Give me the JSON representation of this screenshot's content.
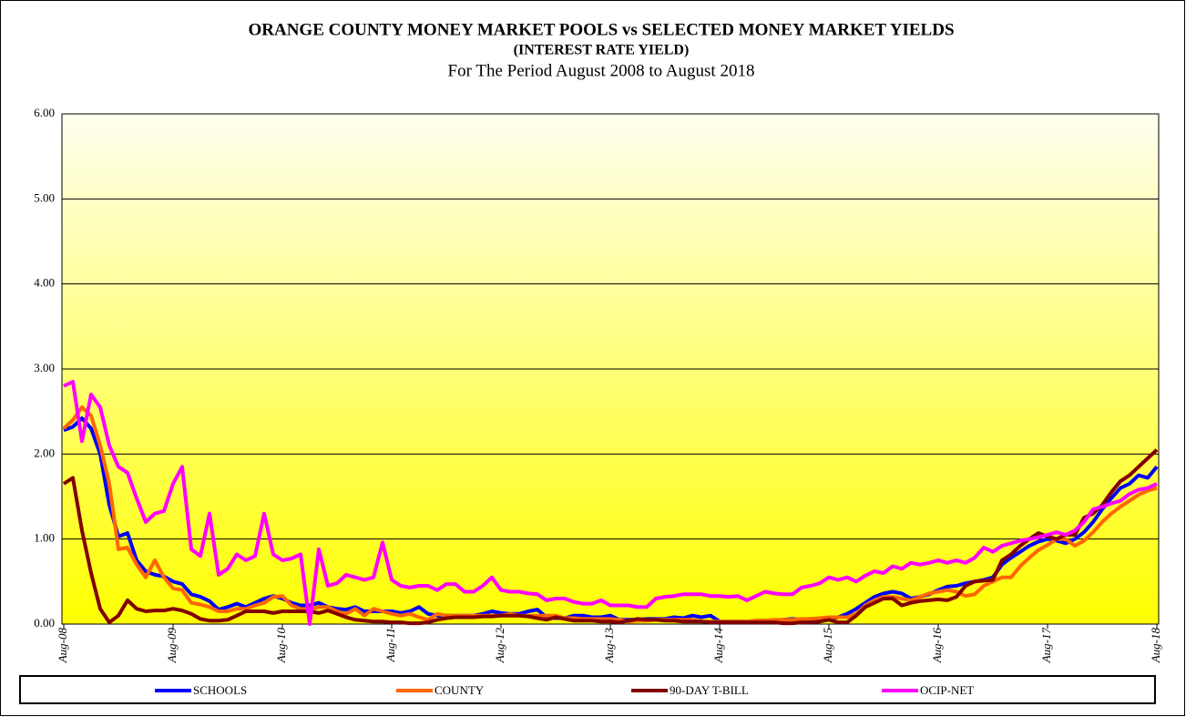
{
  "chart_data": {
    "type": "line",
    "title": "ORANGE COUNTY MONEY MARKET POOLS vs SELECTED MONEY MARKET YIELDS",
    "subtitle": "(INTEREST RATE YIELD)",
    "period": "For The Period August 2008 to August 2018",
    "categories": [
      "Aug-08",
      null,
      null,
      null,
      null,
      null,
      null,
      null,
      null,
      null,
      null,
      null,
      "Aug-09",
      null,
      null,
      null,
      null,
      null,
      null,
      null,
      null,
      null,
      null,
      null,
      "Aug-10",
      null,
      null,
      null,
      null,
      null,
      null,
      null,
      null,
      null,
      null,
      null,
      "Aug-11",
      null,
      null,
      null,
      null,
      null,
      null,
      null,
      null,
      null,
      null,
      null,
      "Aug-12",
      null,
      null,
      null,
      null,
      null,
      null,
      null,
      null,
      null,
      null,
      null,
      "Aug-13",
      null,
      null,
      null,
      null,
      null,
      null,
      null,
      null,
      null,
      null,
      null,
      "Aug-14",
      null,
      null,
      null,
      null,
      null,
      null,
      null,
      null,
      null,
      null,
      null,
      "Aug-15",
      null,
      null,
      null,
      null,
      null,
      null,
      null,
      null,
      null,
      null,
      null,
      "Aug-16",
      null,
      null,
      null,
      null,
      null,
      null,
      null,
      null,
      null,
      null,
      null,
      "Aug-17",
      null,
      null,
      null,
      null,
      null,
      null,
      null,
      null,
      null,
      null,
      null,
      "Aug-18"
    ],
    "series": [
      {
        "name": "SCHOOLS",
        "color": "#0000ff",
        "values": [
          2.28,
          2.32,
          2.42,
          2.3,
          2.0,
          1.4,
          1.03,
          1.07,
          0.75,
          0.62,
          0.58,
          0.56,
          0.5,
          0.47,
          0.35,
          0.32,
          0.27,
          0.17,
          0.2,
          0.24,
          0.2,
          0.25,
          0.3,
          0.33,
          0.3,
          0.25,
          0.22,
          0.22,
          0.25,
          0.2,
          0.18,
          0.17,
          0.2,
          0.15,
          0.15,
          0.15,
          0.15,
          0.13,
          0.15,
          0.2,
          0.12,
          0.1,
          0.1,
          0.1,
          0.1,
          0.1,
          0.12,
          0.15,
          0.13,
          0.12,
          0.12,
          0.15,
          0.17,
          0.08,
          0.07,
          0.07,
          0.1,
          0.1,
          0.08,
          0.08,
          0.1,
          0.05,
          0.05,
          0.05,
          0.06,
          0.06,
          0.06,
          0.08,
          0.07,
          0.1,
          0.08,
          0.1,
          0.03,
          0.03,
          0.03,
          0.03,
          0.04,
          0.04,
          0.04,
          0.05,
          0.06,
          0.05,
          0.06,
          0.06,
          0.06,
          0.08,
          0.12,
          0.18,
          0.25,
          0.32,
          0.36,
          0.38,
          0.36,
          0.3,
          0.32,
          0.35,
          0.4,
          0.44,
          0.45,
          0.48,
          0.5,
          0.52,
          0.55,
          0.7,
          0.78,
          0.85,
          0.92,
          0.97,
          1.0,
          0.98,
          0.95,
          1.0,
          1.08,
          1.2,
          1.35,
          1.48,
          1.6,
          1.65,
          1.75,
          1.72,
          1.85
        ]
      },
      {
        "name": "COUNTY",
        "color": "#ff6600",
        "values": [
          2.3,
          2.4,
          2.55,
          2.45,
          2.1,
          1.65,
          0.88,
          0.9,
          0.7,
          0.55,
          0.75,
          0.55,
          0.42,
          0.4,
          0.25,
          0.23,
          0.2,
          0.15,
          0.15,
          0.18,
          0.18,
          0.22,
          0.25,
          0.32,
          0.33,
          0.22,
          0.18,
          0.17,
          0.2,
          0.2,
          0.15,
          0.12,
          0.18,
          0.1,
          0.18,
          0.15,
          0.12,
          0.1,
          0.12,
          0.08,
          0.05,
          0.12,
          0.1,
          0.1,
          0.1,
          0.1,
          0.1,
          0.1,
          0.1,
          0.12,
          0.1,
          0.1,
          0.1,
          0.1,
          0.1,
          0.07,
          0.07,
          0.06,
          0.06,
          0.06,
          0.06,
          0.05,
          0.03,
          0.04,
          0.04,
          0.05,
          0.05,
          0.05,
          0.05,
          0.05,
          0.03,
          0.03,
          0.03,
          0.03,
          0.03,
          0.03,
          0.04,
          0.04,
          0.05,
          0.05,
          0.05,
          0.06,
          0.06,
          0.07,
          0.08,
          0.08,
          0.08,
          0.12,
          0.22,
          0.28,
          0.32,
          0.32,
          0.3,
          0.28,
          0.32,
          0.36,
          0.38,
          0.4,
          0.38,
          0.33,
          0.35,
          0.45,
          0.5,
          0.55,
          0.55,
          0.68,
          0.78,
          0.87,
          0.93,
          1.0,
          1.0,
          0.92,
          0.98,
          1.08,
          1.2,
          1.3,
          1.38,
          1.45,
          1.52,
          1.57,
          1.6
        ]
      },
      {
        "name": "90-DAY T-BILL",
        "color": "#800000",
        "values": [
          1.65,
          1.72,
          1.1,
          0.6,
          0.18,
          0.02,
          0.1,
          0.28,
          0.18,
          0.15,
          0.16,
          0.16,
          0.18,
          0.16,
          0.12,
          0.06,
          0.04,
          0.04,
          0.05,
          0.1,
          0.15,
          0.15,
          0.15,
          0.13,
          0.15,
          0.15,
          0.15,
          0.15,
          0.13,
          0.16,
          0.12,
          0.08,
          0.05,
          0.04,
          0.03,
          0.03,
          0.02,
          0.02,
          0.01,
          0.01,
          0.02,
          0.05,
          0.07,
          0.08,
          0.08,
          0.08,
          0.09,
          0.09,
          0.1,
          0.1,
          0.1,
          0.09,
          0.07,
          0.05,
          0.08,
          0.06,
          0.04,
          0.04,
          0.04,
          0.03,
          0.03,
          0.02,
          0.04,
          0.06,
          0.05,
          0.05,
          0.04,
          0.04,
          0.03,
          0.03,
          0.03,
          0.02,
          0.02,
          0.02,
          0.02,
          0.02,
          0.02,
          0.02,
          0.02,
          0.01,
          0.01,
          0.02,
          0.02,
          0.03,
          0.05,
          0.02,
          0.02,
          0.1,
          0.2,
          0.25,
          0.3,
          0.3,
          0.22,
          0.25,
          0.27,
          0.28,
          0.29,
          0.28,
          0.32,
          0.45,
          0.5,
          0.51,
          0.52,
          0.75,
          0.82,
          0.92,
          1.0,
          1.07,
          1.03,
          1.0,
          1.05,
          1.05,
          1.25,
          1.3,
          1.4,
          1.55,
          1.68,
          1.75,
          1.85,
          1.95,
          2.05
        ]
      },
      {
        "name": "OCIP-NET",
        "color": "#ff00ff",
        "values": [
          2.8,
          2.85,
          2.15,
          2.7,
          2.55,
          2.1,
          1.85,
          1.78,
          1.48,
          1.2,
          1.3,
          1.33,
          1.65,
          1.85,
          0.88,
          0.8,
          1.3,
          0.58,
          0.65,
          0.82,
          0.75,
          0.8,
          1.3,
          0.82,
          0.75,
          0.77,
          0.82,
          0.0,
          0.88,
          0.45,
          0.48,
          0.58,
          0.55,
          0.52,
          0.55,
          0.96,
          0.52,
          0.45,
          0.43,
          0.45,
          0.45,
          0.4,
          0.47,
          0.47,
          0.38,
          0.38,
          0.45,
          0.55,
          0.4,
          0.38,
          0.38,
          0.36,
          0.35,
          0.28,
          0.3,
          0.3,
          0.26,
          0.24,
          0.24,
          0.28,
          0.22,
          0.22,
          0.22,
          0.2,
          0.2,
          0.3,
          0.32,
          0.33,
          0.35,
          0.35,
          0.35,
          0.33,
          0.33,
          0.32,
          0.33,
          0.28,
          0.33,
          0.38,
          0.36,
          0.35,
          0.35,
          0.43,
          0.45,
          0.48,
          0.55,
          0.52,
          0.55,
          0.5,
          0.57,
          0.62,
          0.6,
          0.68,
          0.65,
          0.72,
          0.7,
          0.72,
          0.75,
          0.72,
          0.75,
          0.72,
          0.78,
          0.9,
          0.85,
          0.92,
          0.95,
          0.98,
          1.0,
          1.02,
          1.05,
          1.08,
          1.05,
          1.1,
          1.2,
          1.35,
          1.38,
          1.42,
          1.45,
          1.53,
          1.58,
          1.6,
          1.65
        ]
      }
    ],
    "ylim": [
      0,
      6
    ],
    "yticks": [
      {
        "value": 0,
        "label": "0.00"
      },
      {
        "value": 1,
        "label": "1.00"
      },
      {
        "value": 2,
        "label": "2.00"
      },
      {
        "value": 3,
        "label": "3.00"
      },
      {
        "value": 4,
        "label": "4.00"
      },
      {
        "value": 5,
        "label": "5.00"
      },
      {
        "value": 6,
        "label": "6.00"
      }
    ],
    "grid": true,
    "legend": "bottom"
  }
}
